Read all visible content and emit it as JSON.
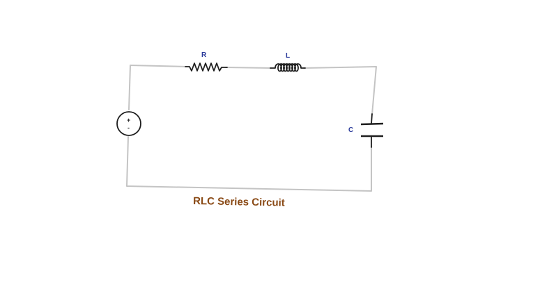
{
  "circuit": {
    "components": {
      "resistor": {
        "label": "R"
      },
      "inductor": {
        "label": "L"
      },
      "capacitor": {
        "label": "C"
      },
      "source": {
        "plus": "+",
        "minus": "-"
      }
    },
    "caption": "RLC Series Circuit",
    "colors": {
      "wire": "#c4c4c4",
      "component": "#1e1e1e",
      "label": "#2a3a9a",
      "caption": "#8a4a16"
    }
  }
}
